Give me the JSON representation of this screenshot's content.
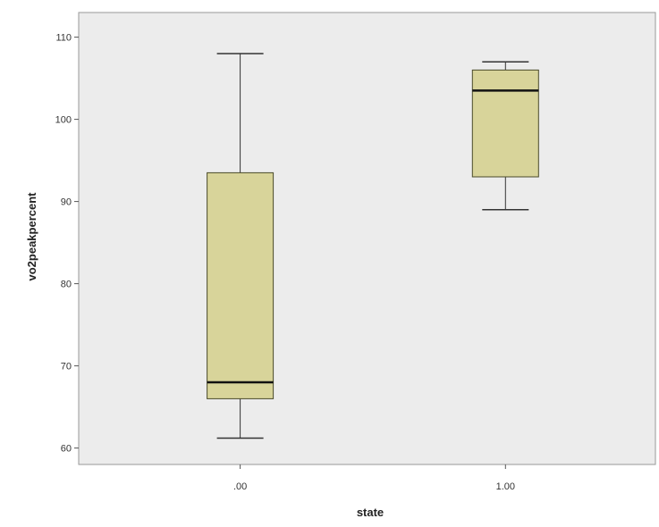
{
  "chart_data": {
    "type": "boxplot",
    "title": "",
    "xlabel": "state",
    "ylabel": "vo2peakpercent",
    "categories": [
      ".00",
      "1.00"
    ],
    "ylim": [
      58,
      113
    ],
    "y_ticks": [
      60,
      70,
      80,
      90,
      100,
      110
    ],
    "y_tick_labels": [
      "60",
      "70",
      "80",
      "90",
      "100",
      "110"
    ],
    "grid": false,
    "boxes": [
      {
        "category": ".00",
        "min": 61.2,
        "q1": 66.0,
        "median": 68.0,
        "q3": 93.5,
        "max": 108.0
      },
      {
        "category": "1.00",
        "min": 89.0,
        "q1": 93.0,
        "median": 103.5,
        "q3": 106.0,
        "max": 107.0
      }
    ],
    "colors": {
      "plot_background": "#ececec",
      "box_fill": "#d8d49a",
      "box_stroke": "#4a4a2a",
      "whisker": "#333333",
      "median": "#111111",
      "frame": "#999999"
    }
  }
}
